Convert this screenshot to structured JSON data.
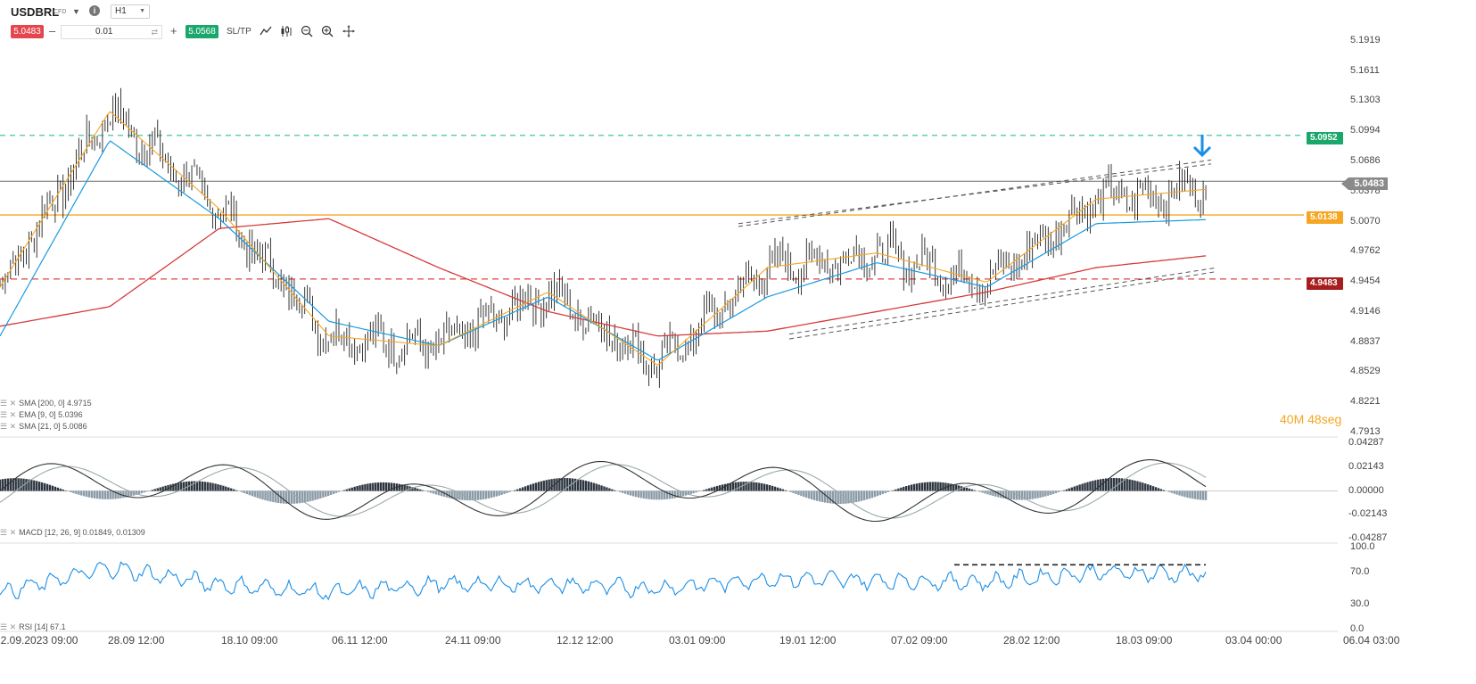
{
  "header": {
    "symbol": "USDBRL",
    "symbol_type": "CFD",
    "timeframe": "H1",
    "bid": "5.0483",
    "volume": "0.01",
    "ask": "5.0568",
    "sltp": "SL/TP",
    "timer_min": "40M",
    "timer_sec": "48seg"
  },
  "colors": {
    "bid": "#e5454c",
    "ask": "#1aa76b",
    "price_line": "#6b6b6b",
    "resistance": "#2dbf9a",
    "orange_level": "#f5a623",
    "support": "#e0443c",
    "sma200": "#d63b3b",
    "ema9": "#f5a623",
    "sma21": "#1a9be0",
    "rsi": "#1a8fe8",
    "arrow": "#1a8fe8"
  },
  "price_axis": {
    "ticks": [
      "5.1919",
      "5.1611",
      "5.1303",
      "5.0994",
      "5.0686",
      "5.0378",
      "5.0070",
      "4.9762",
      "4.9454",
      "4.9146",
      "4.8837",
      "4.8529",
      "4.8221",
      "4.7913"
    ]
  },
  "levels": {
    "current": "5.0483",
    "resistance": "5.0952",
    "orange": "5.0138",
    "support": "4.9483"
  },
  "indicators": {
    "sma200": "SMA [200, 0] 4.9715",
    "ema9": "EMA [9, 0] 5.0396",
    "sma21": "SMA [21, 0] 5.0086",
    "macd": "MACD [12, 26, 9] 0.01849, 0.01309",
    "rsi": "RSI [14] 67.1"
  },
  "macd_axis": [
    "0.04287",
    "0.02143",
    "0.00000",
    "-0.02143",
    "-0.04287"
  ],
  "rsi_axis": [
    "100.0",
    "70.0",
    "30.0",
    "0.0"
  ],
  "dates": [
    "12.09.2023 09:00",
    "28.09 12:00",
    "18.10 09:00",
    "06.11 12:00",
    "24.11 09:00",
    "12.12 12:00",
    "03.01 09:00",
    "19.01 12:00",
    "07.02 09:00",
    "28.02 12:00",
    "18.03 09:00",
    "03.04 00:00",
    "06.04 03:00"
  ],
  "chart_data": {
    "type": "line",
    "title": "USDBRL H1",
    "x": [
      "12.09.2023 09:00",
      "28.09 12:00",
      "18.10 09:00",
      "06.11 12:00",
      "24.11 09:00",
      "12.12 12:00",
      "03.01 09:00",
      "19.01 12:00",
      "07.02 09:00",
      "28.02 12:00",
      "18.03 09:00",
      "03.04 00:00"
    ],
    "series": [
      {
        "name": "EMA [9, 0]",
        "values": [
          4.94,
          5.12,
          5.02,
          4.89,
          4.88,
          4.935,
          4.86,
          4.96,
          4.975,
          4.945,
          5.03,
          5.04
        ]
      },
      {
        "name": "SMA [21, 0]",
        "values": [
          4.89,
          5.09,
          5.01,
          4.905,
          4.88,
          4.93,
          4.865,
          4.93,
          4.965,
          4.94,
          5.005,
          5.009
        ]
      },
      {
        "name": "SMA [200, 0]",
        "values": [
          4.9,
          4.92,
          5.0,
          5.01,
          4.96,
          4.915,
          4.89,
          4.895,
          4.915,
          4.935,
          4.96,
          4.972
        ]
      }
    ],
    "ylim": [
      4.7913,
      5.2227
    ],
    "horizontal_levels": [
      5.0952,
      5.0483,
      5.0138,
      4.9483
    ],
    "rsi_values": [
      45,
      75,
      55,
      45,
      55,
      55,
      50,
      62,
      60,
      58,
      70,
      67.1
    ],
    "rsi_ylim": [
      0,
      100
    ],
    "macd_ylim": [
      -0.04287,
      0.04287
    ]
  }
}
